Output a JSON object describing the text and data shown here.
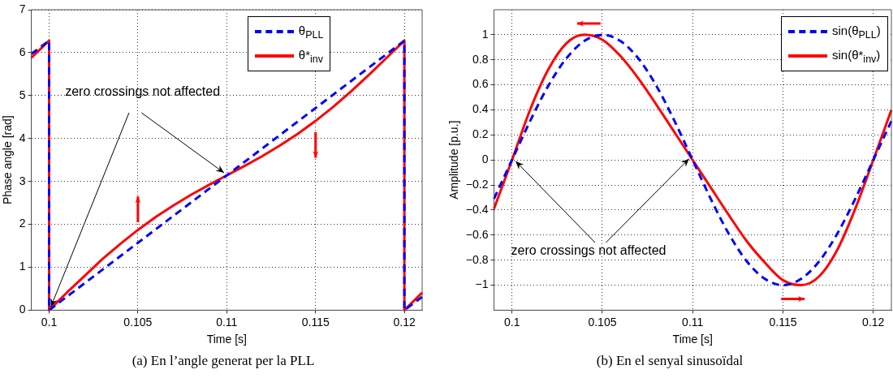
{
  "chart_data": [
    {
      "type": "line",
      "title": "(a) En l’angle generat per la PLL",
      "xlabel": "Time [s]",
      "ylabel": "Phase angle [rad]",
      "xlim": [
        0.099,
        0.121
      ],
      "xticks": [
        0.1,
        0.105,
        0.11,
        0.115,
        0.12
      ],
      "ylim": [
        0,
        7
      ],
      "yticks": [
        0,
        1,
        2,
        3,
        4,
        5,
        6,
        7
      ],
      "grid": true,
      "legend": "top",
      "marker": "none",
      "annotations": [
        {
          "text": "zero crossings not affected",
          "x": 0.11,
          "y": 3.14
        }
      ],
      "series": [
        {
          "name": "θ$_{PLL}$",
          "color": "#0000ff",
          "line_style": "dashed",
          "x": [
            0.099,
            0.1,
            0.1,
            0.12,
            0.12,
            0.121
          ],
          "values": [
            5.97,
            6.28,
            0,
            6.28,
            0,
            0.31
          ]
        },
        {
          "name": "θ*$_{inv}$",
          "color": "#ff0000",
          "line_style": "solid",
          "x": [
            0.099,
            0.1,
            0.1,
            0.101,
            0.102,
            0.103,
            0.104,
            0.105,
            0.106,
            0.107,
            0.108,
            0.109,
            0.11,
            0.111,
            0.112,
            0.113,
            0.114,
            0.115,
            0.116,
            0.117,
            0.118,
            0.119,
            0.12,
            0.12,
            0.121
          ],
          "values": [
            5.88,
            6.28,
            0,
            0.41,
            0.8,
            1.19,
            1.54,
            1.87,
            2.17,
            2.44,
            2.69,
            2.92,
            3.14,
            3.36,
            3.59,
            3.84,
            4.11,
            4.41,
            4.74,
            5.1,
            5.48,
            5.88,
            6.28,
            0,
            0.41
          ]
        }
      ]
    },
    {
      "type": "line",
      "title": "(b) En el senyal sinusoïdal",
      "xlabel": "Time [s]",
      "ylabel": "Amplitude [p.u.]",
      "xlim": [
        0.099,
        0.121
      ],
      "xticks": [
        0.1,
        0.105,
        0.11,
        0.115,
        0.12
      ],
      "ylim": [
        -1.2,
        1.2
      ],
      "yticks": [
        {
          "value": -1,
          "label": "−1"
        },
        {
          "value": -0.8,
          "label": "−0.8"
        },
        {
          "value": -0.6,
          "label": "−0.6"
        },
        {
          "value": -0.4,
          "label": "−0.4"
        },
        {
          "value": -0.2,
          "label": "−0.2"
        },
        0,
        0.2,
        0.4,
        0.6,
        0.8,
        1
      ],
      "grid": true,
      "legend": "top right",
      "marker": "none",
      "annotations": [
        {
          "text": "zero crossings not affected",
          "x": 0.11,
          "y": 0
        }
      ],
      "x": [
        0.099,
        0.1,
        0.101,
        0.102,
        0.103,
        0.104,
        0.105,
        0.106,
        0.107,
        0.108,
        0.109,
        0.11,
        0.111,
        0.112,
        0.113,
        0.114,
        0.115,
        0.116,
        0.117,
        0.118,
        0.119,
        0.12,
        0.121
      ],
      "series": [
        {
          "name": "sin(θ$_{PLL}$)",
          "color": "#0000ff",
          "line_style": "dashed",
          "values": [
            -0.31,
            0,
            0.31,
            0.59,
            0.81,
            0.95,
            1,
            0.95,
            0.81,
            0.59,
            0.31,
            0,
            -0.31,
            -0.59,
            -0.81,
            -0.95,
            -1,
            -0.95,
            -0.81,
            -0.59,
            -0.31,
            0,
            0.31
          ]
        },
        {
          "name": "sin(θ*$_{inv}$)",
          "color": "#ff0000",
          "line_style": "solid",
          "values": [
            -0.39,
            0,
            0.4,
            0.72,
            0.93,
            1,
            0.96,
            0.83,
            0.65,
            0.44,
            0.22,
            0,
            -0.22,
            -0.44,
            -0.65,
            -0.82,
            -0.96,
            -1,
            -0.93,
            -0.72,
            -0.39,
            0,
            0.4
          ]
        }
      ]
    }
  ]
}
